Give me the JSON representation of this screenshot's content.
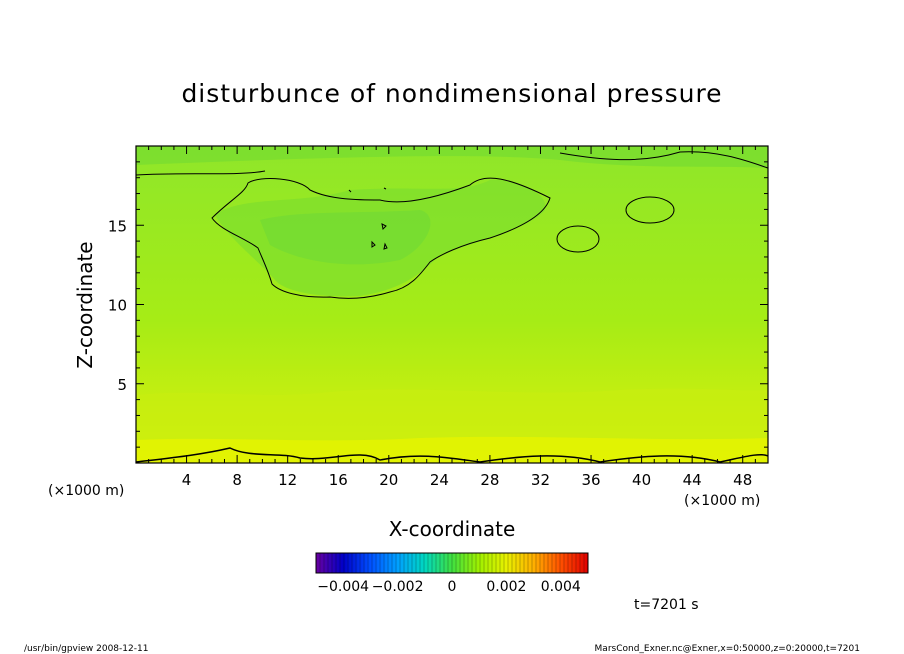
{
  "chart_data": {
    "type": "heatmap",
    "title": "disturbunce of nondimensional pressure",
    "xlabel": "X-coordinate",
    "ylabel": "Z-coordinate",
    "x_unit_label": "(×1000 m)",
    "y_unit_label": "(×1000 m)",
    "xlim": [
      0,
      50
    ],
    "ylim": [
      0,
      20
    ],
    "x_ticks": [
      4,
      8,
      12,
      16,
      20,
      24,
      28,
      32,
      36,
      40,
      44,
      48
    ],
    "x_tick_labels": [
      "4",
      "8",
      "12",
      "16",
      "20",
      "24",
      "28",
      "32",
      "36",
      "40",
      "44",
      "48"
    ],
    "y_ticks": [
      5,
      10,
      15
    ],
    "y_tick_labels": [
      "5",
      "10",
      "15"
    ],
    "colorbar": {
      "range": [
        -0.005,
        0.005
      ],
      "tick_labels": [
        "−0.004",
        "−0.002",
        "0",
        "0.002",
        "0.004"
      ],
      "colors": [
        "#6a00a0",
        "#0000c8",
        "#0050ff",
        "#00a0ff",
        "#00d8c0",
        "#40e040",
        "#a0f000",
        "#e8f000",
        "#ffb000",
        "#ff5000",
        "#e00000"
      ]
    },
    "field_note": "near-uniform small positive disturbance; yellow-green near bottom, greener aloft",
    "time_label": "t=7201 s"
  },
  "footer": {
    "left": "/usr/bin/gpview   2008-12-11",
    "right": "MarsCond_Exner.nc@Exner,x=0:50000,z=0:20000,t=7201"
  }
}
